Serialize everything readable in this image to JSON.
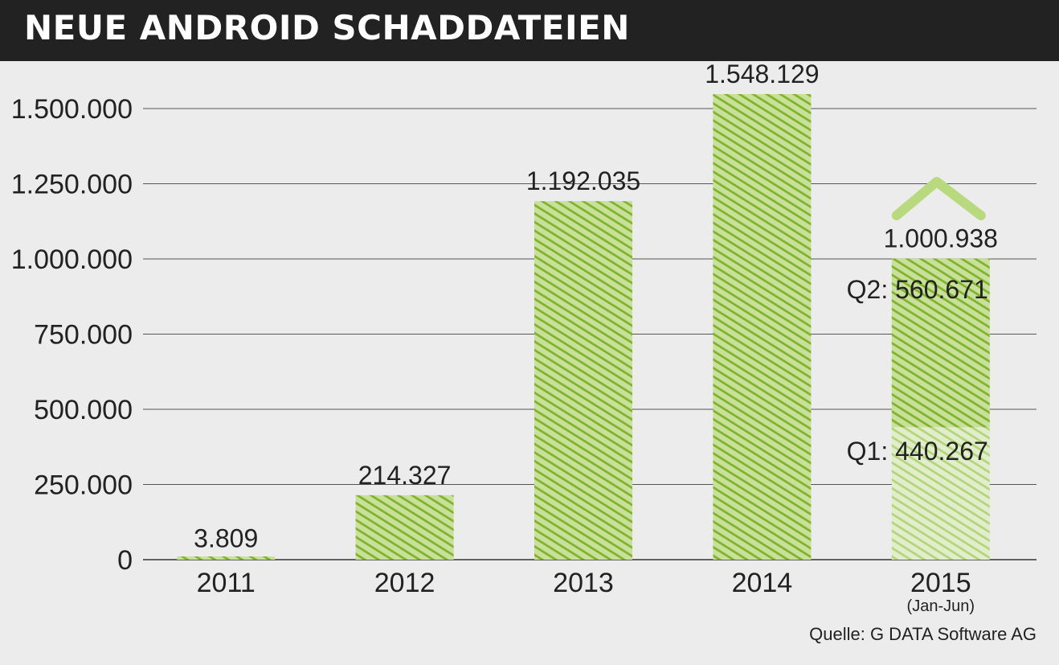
{
  "title": "NEUE ANDROID SCHADDATEIEN",
  "source": "Quelle: G DATA Software AG",
  "colors": {
    "bar": "#8cbe35",
    "bar_light": "#b9d97e",
    "header_bg": "#222222",
    "background": "#ececec"
  },
  "chart_data": {
    "type": "bar",
    "categories": [
      "2011",
      "2012",
      "2013",
      "2014",
      "2015"
    ],
    "category_sublabels": [
      "",
      "",
      "",
      "",
      "(Jan-Jun)"
    ],
    "values": [
      3809,
      214327,
      1192035,
      1548129,
      1000938
    ],
    "value_labels": [
      "3.809",
      "214.327",
      "1.192.035",
      "1.548.129",
      "1.000.938"
    ],
    "stacked_2015": [
      {
        "label": "Q1:",
        "value_label": "440.267",
        "value": 440267
      },
      {
        "label": "Q2:",
        "value_label": "560.671",
        "value": 560671
      }
    ],
    "yticks": [
      0,
      250000,
      500000,
      750000,
      1000000,
      1250000,
      1500000
    ],
    "ytick_labels": [
      "0",
      "250.000",
      "500.000",
      "750.000",
      "1.000.000",
      "1.250.000",
      "1.500.000"
    ],
    "ylim": [
      0,
      1500000
    ],
    "grid": true,
    "projection_arrow": "up",
    "xlabel": "",
    "ylabel": ""
  }
}
